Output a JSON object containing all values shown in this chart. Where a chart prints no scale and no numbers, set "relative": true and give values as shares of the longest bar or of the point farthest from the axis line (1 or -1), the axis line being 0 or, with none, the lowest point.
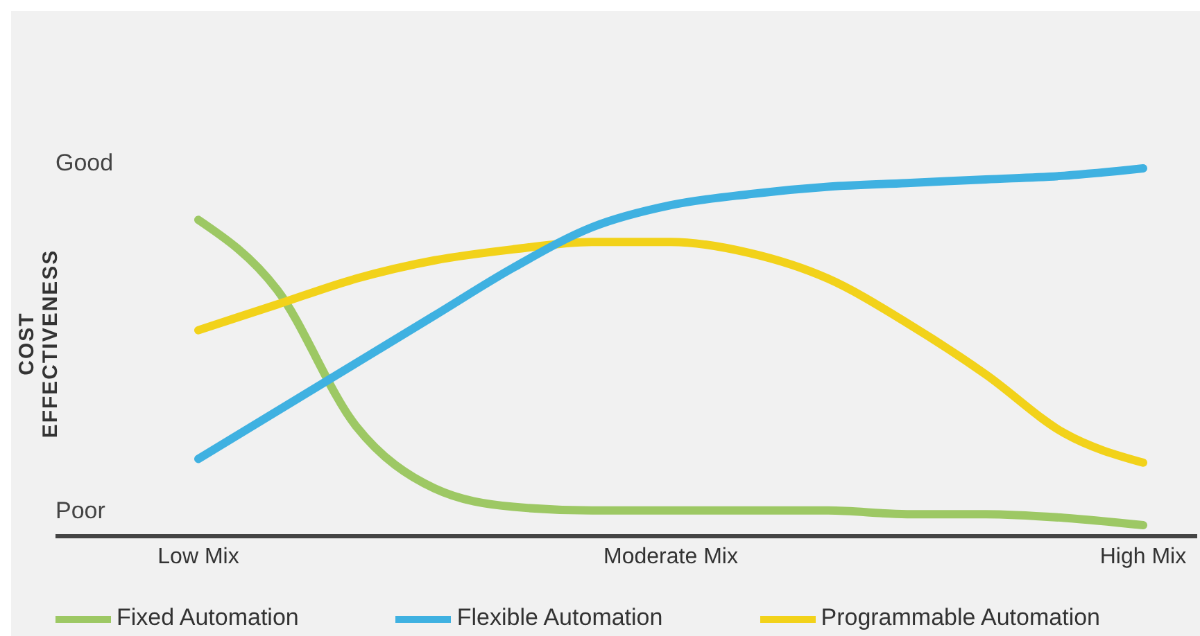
{
  "chart_data": {
    "type": "line",
    "relative": true,
    "ylabel": "COST EFFECTIVENESS",
    "annotations": [
      "Good",
      "Poor"
    ],
    "categories": [
      "Low Mix",
      null,
      null,
      null,
      null,
      null,
      "Moderate Mix",
      null,
      null,
      null,
      null,
      null,
      "High Mix"
    ],
    "grid": false,
    "legend": "bottom",
    "marker": "none",
    "line_style": "solid",
    "series": [
      {
        "name": "Fixed Automation",
        "color": "#9dc864",
        "values": [
          0.86,
          0.67,
          0.3,
          0.13,
          0.08,
          0.07,
          0.07,
          0.07,
          0.07,
          0.06,
          0.06,
          0.05,
          0.03
        ]
      },
      {
        "name": "Programmable Automation",
        "color": "#f2d21a",
        "values": [
          0.56,
          0.63,
          0.7,
          0.75,
          0.78,
          0.8,
          0.8,
          0.77,
          0.7,
          0.58,
          0.44,
          0.28,
          0.2
        ]
      },
      {
        "name": "Flexible Automation",
        "color": "#3fb1e1",
        "values": [
          0.21,
          0.34,
          0.47,
          0.6,
          0.73,
          0.84,
          0.9,
          0.93,
          0.95,
          0.96,
          0.97,
          0.98,
          1.0
        ]
      }
    ]
  }
}
